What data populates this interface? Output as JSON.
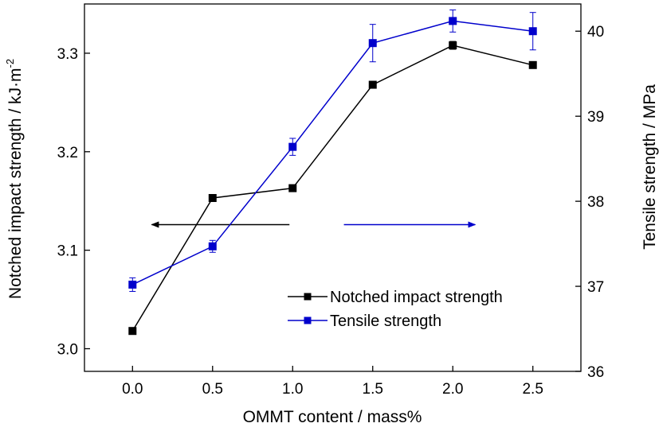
{
  "chart_data": {
    "type": "line",
    "x": [
      0.0,
      0.5,
      1.0,
      1.5,
      2.0,
      2.5
    ],
    "x_tick_labels": [
      "0.0",
      "0.5",
      "1.0",
      "1.5",
      "2.0",
      "2.5"
    ],
    "xlabel": "OMMT content / mass%",
    "xlim": [
      -0.3,
      2.8
    ],
    "y_left": {
      "label_main": "Notched impact strength / kJ·m",
      "label_sup": "-2",
      "ylim": [
        2.977,
        3.35
      ],
      "ticks": [
        3.0,
        3.1,
        3.2,
        3.3
      ],
      "tick_labels": [
        "3.0",
        "3.1",
        "3.2",
        "3.3"
      ]
    },
    "y_right": {
      "label": "Tensile strength / MPa",
      "ylim": [
        36.0,
        40.32
      ],
      "ticks": [
        36,
        37,
        38,
        39,
        40
      ],
      "tick_labels": [
        "36",
        "37",
        "38",
        "39",
        "40"
      ]
    },
    "series": [
      {
        "name": "Notched impact strength",
        "axis": "left",
        "color": "#000000",
        "values": [
          3.018,
          3.153,
          3.163,
          3.268,
          3.308,
          3.288
        ],
        "error": [
          0,
          0,
          0,
          0,
          0.004,
          0
        ]
      },
      {
        "name": "Tensile strength",
        "axis": "right",
        "color": "#0000cc",
        "values": [
          37.02,
          37.47,
          38.64,
          39.86,
          40.12,
          40.0
        ],
        "error": [
          0.08,
          0.07,
          0.1,
          0.22,
          0.13,
          0.22
        ]
      }
    ],
    "annotations": [
      {
        "type": "arrow",
        "direction": "left",
        "points_to": "left-axis",
        "color": "#000000",
        "y_left": 3.126,
        "x_from": 0.98,
        "x_to": 0.12
      },
      {
        "type": "arrow",
        "direction": "right",
        "points_to": "right-axis",
        "color": "#0000cc",
        "y_left": 3.126,
        "x_from": 1.32,
        "x_to": 2.14
      }
    ],
    "legend": {
      "placement": "lower-right",
      "entries": [
        "Notched impact strength",
        "Tensile strength"
      ]
    },
    "grid": false
  }
}
